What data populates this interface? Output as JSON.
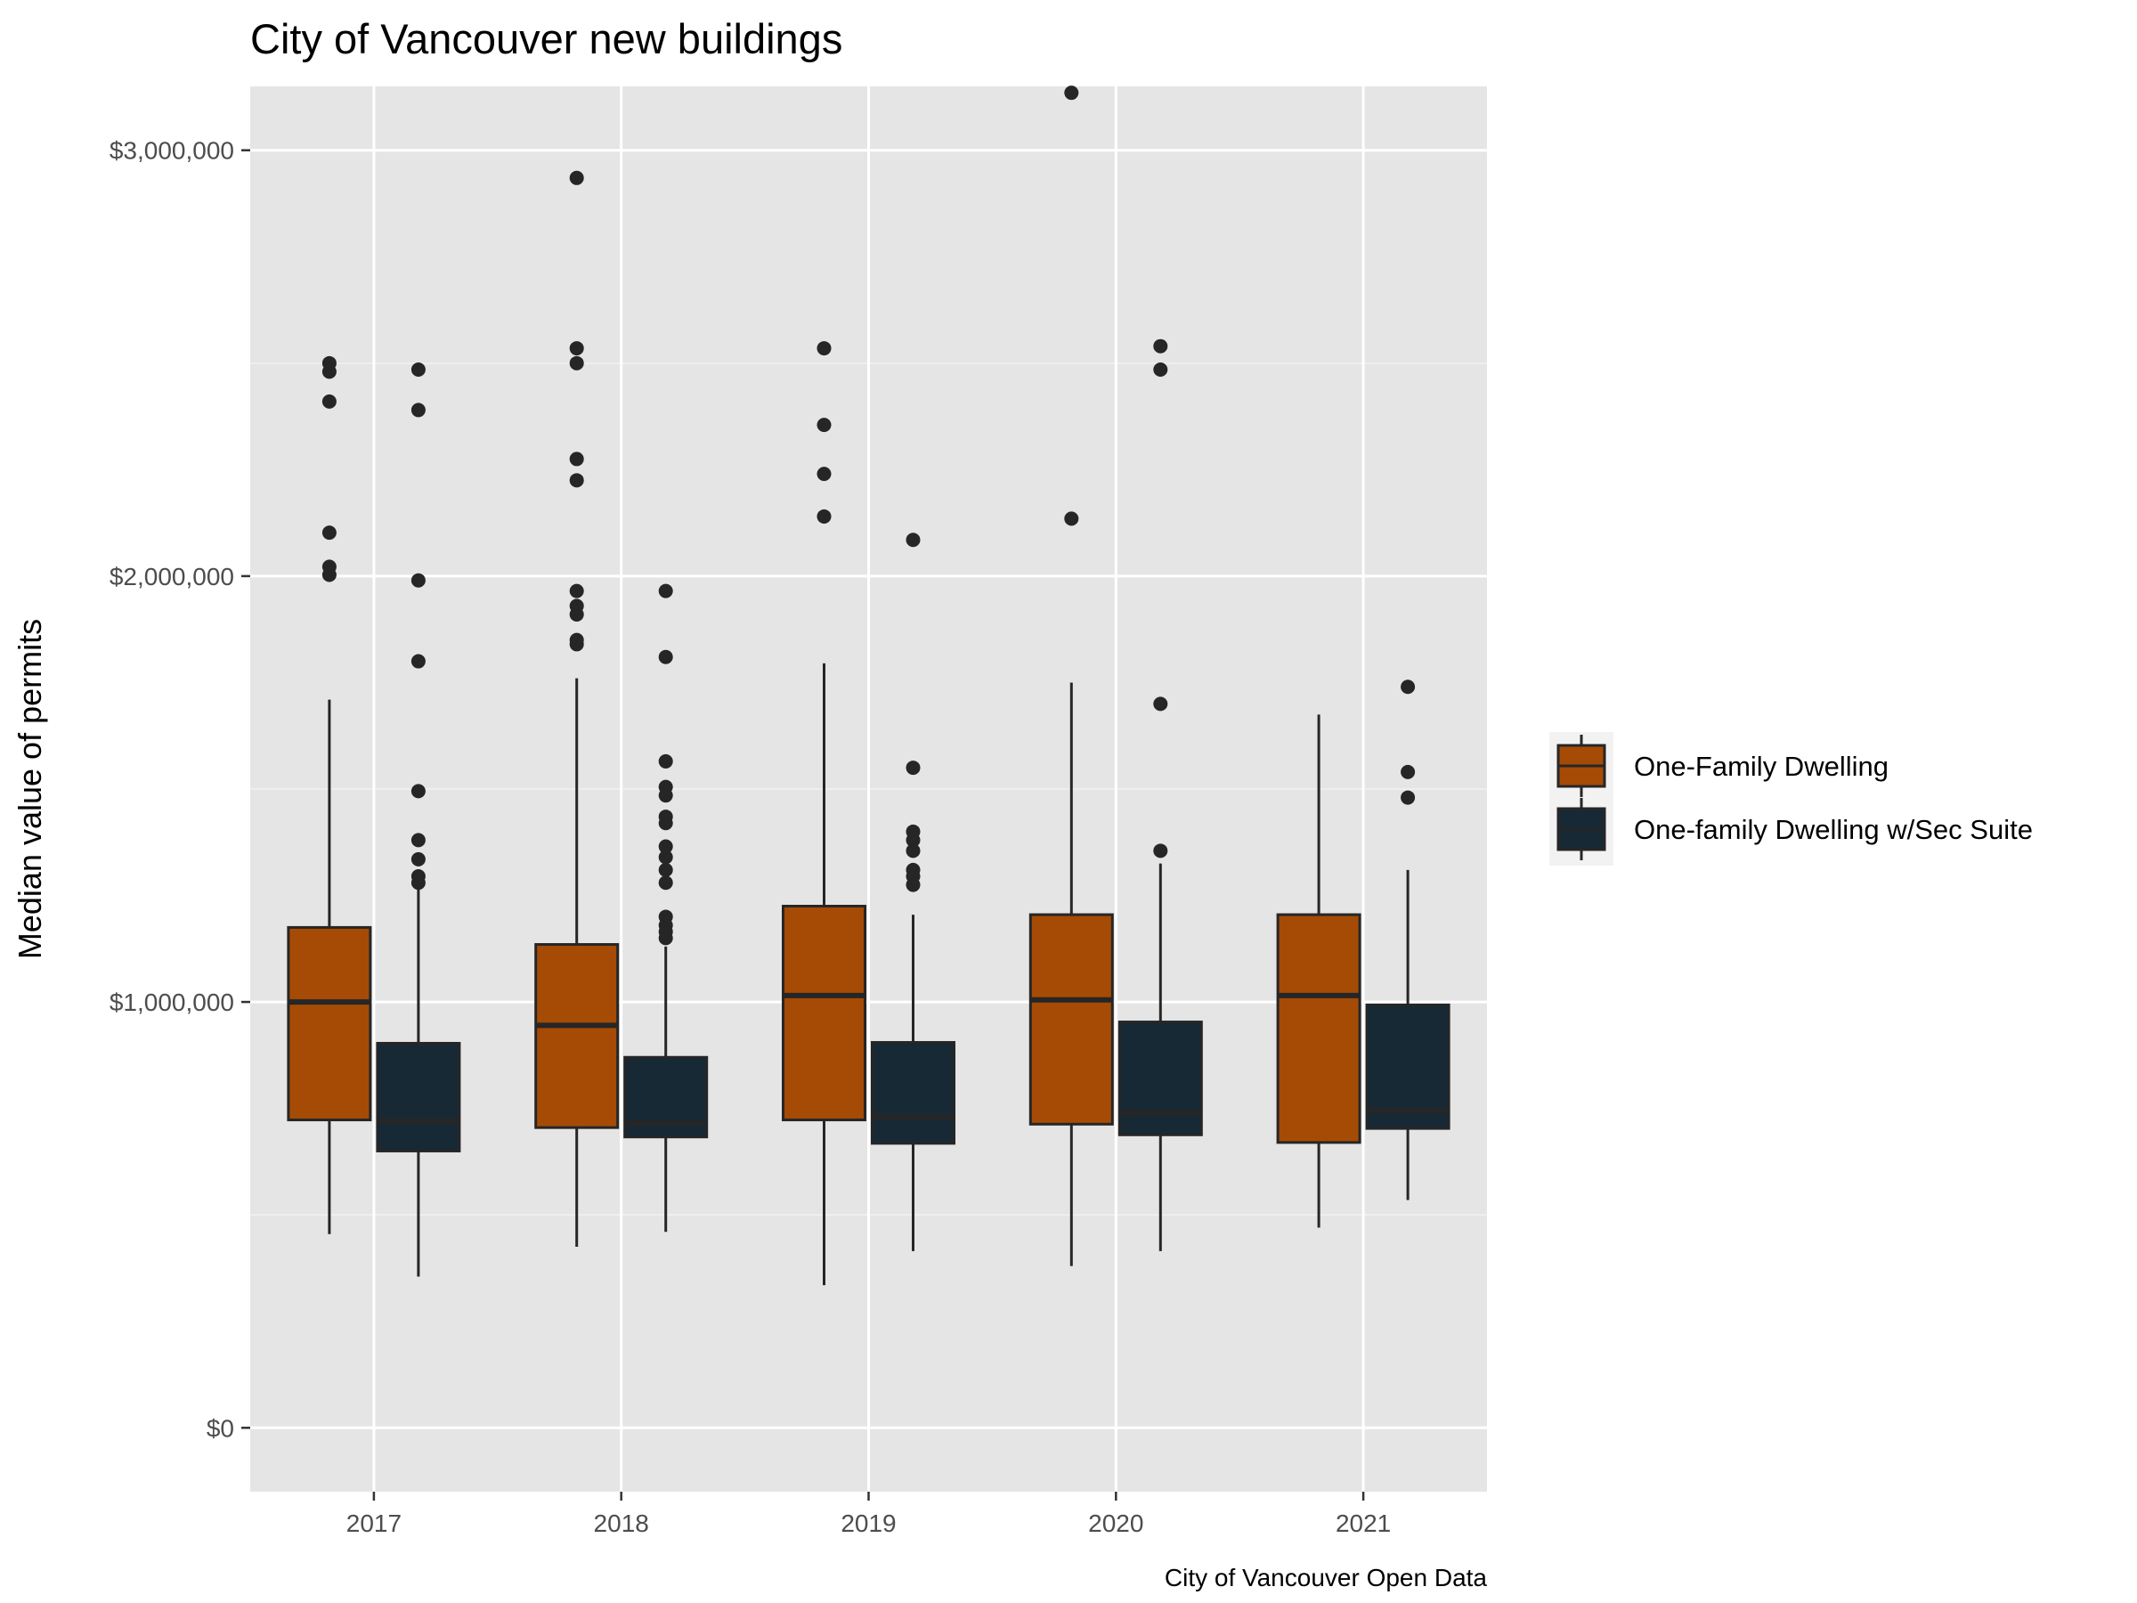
{
  "chart_data": {
    "type": "boxplot",
    "title": "City of Vancouver new buildings",
    "xlabel": "",
    "ylabel": "Median value of permits",
    "caption": "City of Vancouver Open Data",
    "categories": [
      "2017",
      "2018",
      "2019",
      "2020",
      "2021"
    ],
    "ylim": [
      -150000,
      3150000
    ],
    "yticks": [
      0,
      1000000,
      2000000,
      3000000
    ],
    "ytick_labels": [
      "$0",
      "$1,000,000",
      "$2,000,000",
      "$3,000,000"
    ],
    "grid": true,
    "legend_position": "right",
    "series": [
      {
        "name": "One-Family Dwelling",
        "color": "#a54b05",
        "boxes": [
          {
            "category": "2017",
            "whisker_low": 455000,
            "q1": 723000,
            "median": 1000000,
            "q3": 1175000,
            "whisker_high": 1710000,
            "outliers": [
              2003000,
              2022000,
              2102000,
              2410000,
              2480000,
              2500000
            ]
          },
          {
            "category": "2018",
            "whisker_low": 425000,
            "q1": 705000,
            "median": 945000,
            "q3": 1135000,
            "whisker_high": 1760000,
            "outliers": [
              1840000,
              1850000,
              1910000,
              1930000,
              1965000,
              2225000,
              2275000,
              2500000,
              2535000,
              2935000
            ]
          },
          {
            "category": "2019",
            "whisker_low": 335000,
            "q1": 723000,
            "median": 1015000,
            "q3": 1225000,
            "whisker_high": 1795000,
            "outliers": [
              2140000,
              2240000,
              2355000,
              2535000
            ]
          },
          {
            "category": "2020",
            "whisker_low": 380000,
            "q1": 713000,
            "median": 1005000,
            "q3": 1205000,
            "whisker_high": 1750000,
            "outliers": [
              2135000,
              3135000
            ]
          },
          {
            "category": "2021",
            "whisker_low": 470000,
            "q1": 670000,
            "median": 1015000,
            "q3": 1205000,
            "whisker_high": 1675000,
            "outliers": []
          }
        ]
      },
      {
        "name": "One-family Dwelling w/Sec Suite",
        "color": "#172935",
        "boxes": [
          {
            "category": "2017",
            "whisker_low": 355000,
            "q1": 650000,
            "median": 720000,
            "q3": 903000,
            "whisker_high": 1265000,
            "outliers": [
              1280000,
              1295000,
              1335000,
              1380000,
              1495000,
              1800000,
              1990000,
              2390000,
              2485000
            ]
          },
          {
            "category": "2018",
            "whisker_low": 460000,
            "q1": 683000,
            "median": 715000,
            "q3": 870000,
            "whisker_high": 1130000,
            "outliers": [
              1150000,
              1165000,
              1180000,
              1200000,
              1280000,
              1310000,
              1340000,
              1365000,
              1420000,
              1435000,
              1485000,
              1505000,
              1565000,
              1810000,
              1965000
            ]
          },
          {
            "category": "2019",
            "whisker_low": 415000,
            "q1": 668000,
            "median": 730000,
            "q3": 905000,
            "whisker_high": 1205000,
            "outliers": [
              1275000,
              1295000,
              1310000,
              1355000,
              1380000,
              1400000,
              1550000,
              2085000
            ]
          },
          {
            "category": "2020",
            "whisker_low": 415000,
            "q1": 688000,
            "median": 740000,
            "q3": 953000,
            "whisker_high": 1325000,
            "outliers": [
              1355000,
              1700000,
              2485000,
              2540000
            ]
          },
          {
            "category": "2021",
            "whisker_low": 535000,
            "q1": 703000,
            "median": 745000,
            "q3": 993000,
            "whisker_high": 1310000,
            "outliers": [
              1480000,
              1540000,
              1740000
            ]
          }
        ]
      }
    ]
  }
}
